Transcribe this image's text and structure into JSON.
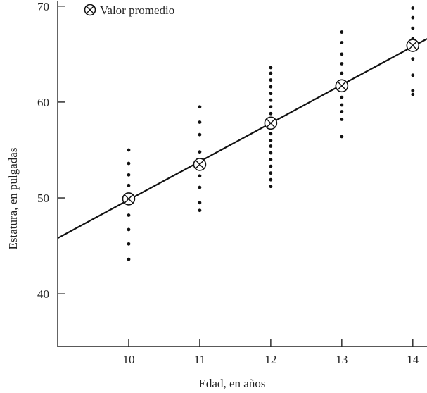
{
  "chart_data": {
    "type": "scatter",
    "title": "",
    "xlabel": "Edad, en años",
    "ylabel": "Estatura, en pulgadas",
    "xlim": [
      9,
      14.2
    ],
    "ylim": [
      34.5,
      70.5
    ],
    "x_ticks": [
      10,
      11,
      12,
      13,
      14
    ],
    "y_ticks": [
      40,
      50,
      60,
      70
    ],
    "legend": {
      "label": "Valor promedio",
      "position": "top-left"
    },
    "series": [
      {
        "name": "",
        "points": [
          [
            10,
            55.0
          ],
          [
            10,
            53.6
          ],
          [
            10,
            52.4
          ],
          [
            10,
            51.3
          ],
          [
            10,
            50.1
          ],
          [
            10,
            48.2
          ],
          [
            10,
            46.7
          ],
          [
            10,
            45.2
          ],
          [
            10,
            43.6
          ],
          [
            11,
            59.5
          ],
          [
            11,
            57.9
          ],
          [
            11,
            56.6
          ],
          [
            11,
            54.8
          ],
          [
            11,
            53.9
          ],
          [
            11,
            52.3
          ],
          [
            11,
            51.1
          ],
          [
            11,
            49.5
          ],
          [
            11,
            48.7
          ],
          [
            12,
            63.6
          ],
          [
            12,
            63.0
          ],
          [
            12,
            62.3
          ],
          [
            12,
            61.6
          ],
          [
            12,
            60.9
          ],
          [
            12,
            60.2
          ],
          [
            12,
            59.5
          ],
          [
            12,
            58.8
          ],
          [
            12,
            58.1
          ],
          [
            12,
            57.4
          ],
          [
            12,
            56.7
          ],
          [
            12,
            56.0
          ],
          [
            12,
            55.4
          ],
          [
            12,
            54.7
          ],
          [
            12,
            54.0
          ],
          [
            12,
            53.3
          ],
          [
            12,
            52.6
          ],
          [
            12,
            51.9
          ],
          [
            12,
            51.2
          ],
          [
            13,
            67.3
          ],
          [
            13,
            66.2
          ],
          [
            13,
            65.0
          ],
          [
            13,
            64.0
          ],
          [
            13,
            63.0
          ],
          [
            13,
            62.2
          ],
          [
            13,
            61.3
          ],
          [
            13,
            60.5
          ],
          [
            13,
            59.7
          ],
          [
            13,
            59.0
          ],
          [
            13,
            58.2
          ],
          [
            13,
            56.4
          ],
          [
            14,
            69.8
          ],
          [
            14,
            68.8
          ],
          [
            14,
            67.7
          ],
          [
            14,
            66.6
          ],
          [
            14,
            65.6
          ],
          [
            14,
            64.5
          ],
          [
            14,
            62.8
          ],
          [
            14,
            61.2
          ],
          [
            14,
            60.8
          ]
        ]
      }
    ],
    "averages": [
      {
        "x": 10,
        "y": 49.9
      },
      {
        "x": 11,
        "y": 53.5
      },
      {
        "x": 12,
        "y": 57.8
      },
      {
        "x": 13,
        "y": 61.7
      },
      {
        "x": 14,
        "y": 65.9
      }
    ],
    "regression_line": {
      "x": [
        9,
        14.2
      ],
      "y": [
        45.8,
        66.6
      ]
    },
    "grid": false
  }
}
